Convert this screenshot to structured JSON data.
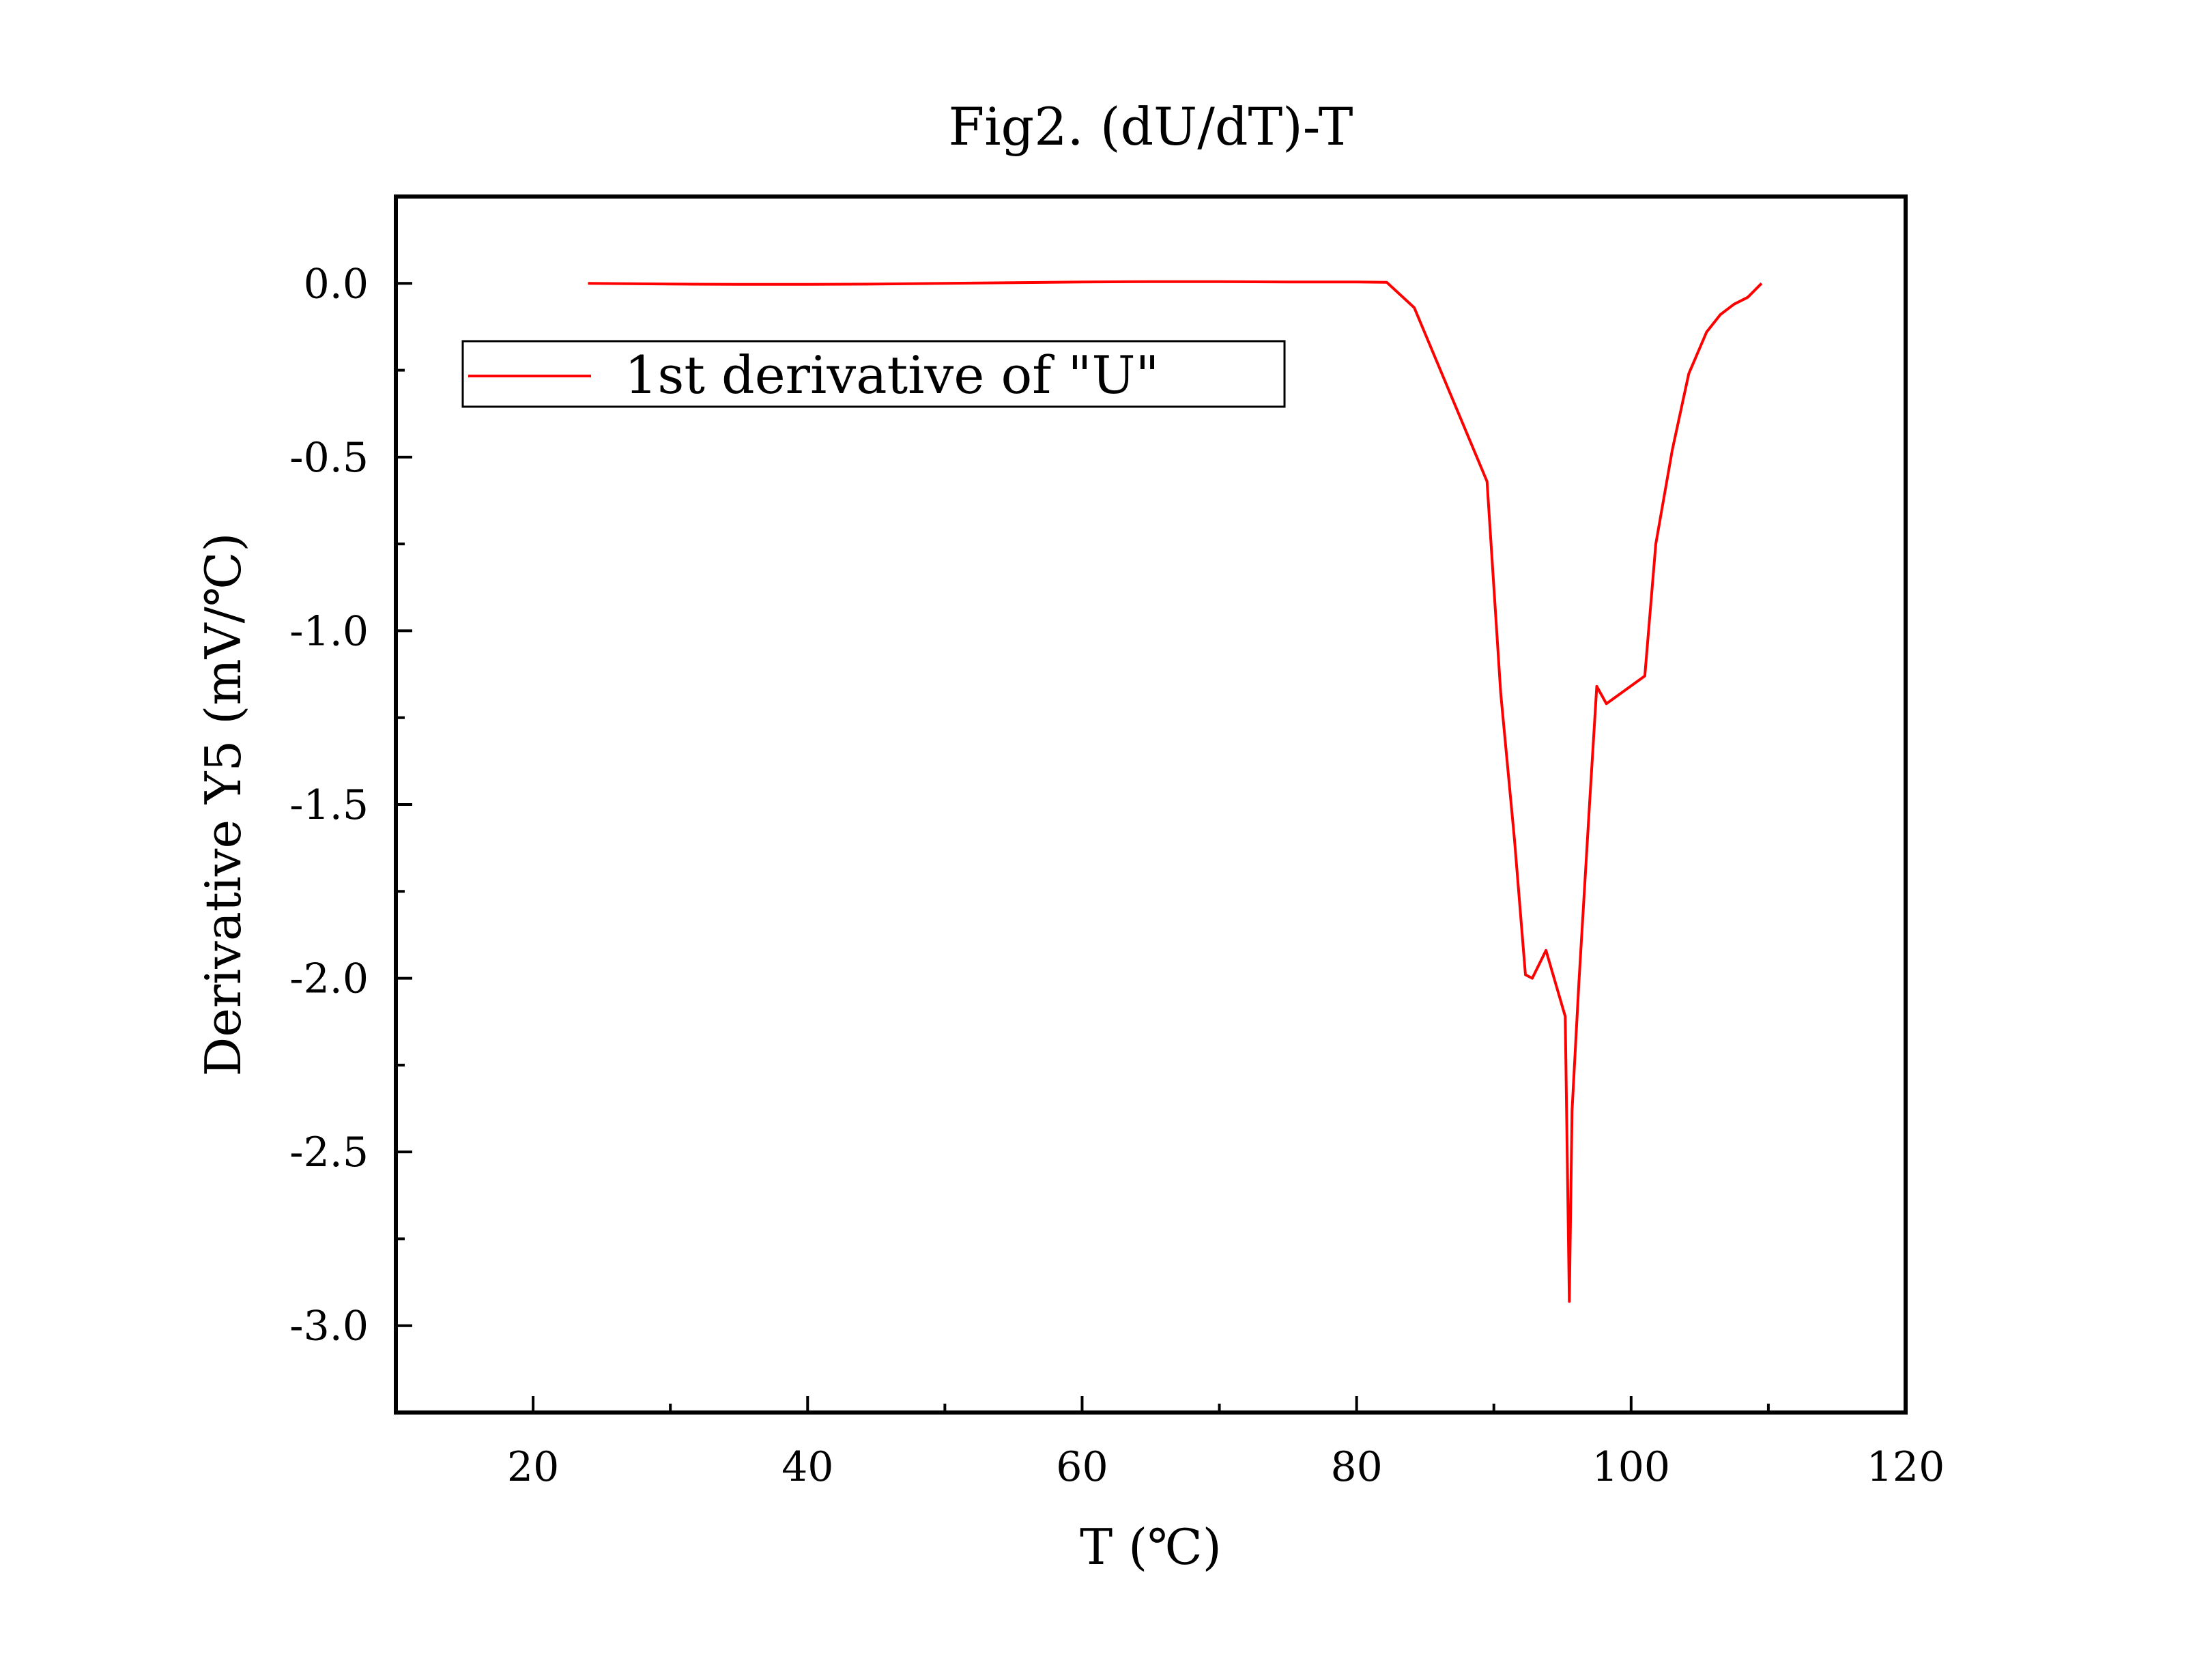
{
  "chart_data": {
    "type": "line",
    "title": "Fig2. (dU/dT)-T",
    "xlabel": "T (℃)",
    "ylabel": "Derivative Y5 (mV/℃)",
    "xlim": [
      10,
      120
    ],
    "ylim": [
      -3.25,
      0.25
    ],
    "xticks": [
      20,
      40,
      60,
      80,
      100,
      120
    ],
    "xtick_labels": [
      "20",
      "40",
      "60",
      "80",
      "100",
      "120"
    ],
    "xminor": [
      30,
      50,
      70,
      90,
      110
    ],
    "yticks": [
      0.0,
      -0.5,
      -1.0,
      -1.5,
      -2.0,
      -2.5,
      -3.0
    ],
    "ytick_labels": [
      "0.0",
      "-0.5",
      "-1.0",
      "-1.5",
      "-2.0",
      "-2.5",
      "-3.0"
    ],
    "yminor": [
      -0.25,
      -0.75,
      -1.25,
      -1.75,
      -2.25,
      -2.75
    ],
    "grid": false,
    "legend_position": "top-left",
    "series": [
      {
        "name": "1st derivative of \"U\"",
        "color": "#ff0000",
        "x": [
          24,
          30,
          35,
          40,
          45,
          50,
          55,
          60,
          65,
          70,
          75,
          80,
          82.2,
          84.2,
          89.5,
          90.5,
          91.5,
          92.3,
          92.8,
          93.8,
          95.2,
          95.5,
          95.7,
          96.2,
          97.0,
          97.5,
          98.2,
          101.0,
          101.8,
          103.0,
          104.2,
          105.5,
          106.5,
          107.5,
          108.5,
          109.0,
          109.5
        ],
        "y": [
          0.0,
          -0.002,
          -0.003,
          -0.003,
          -0.002,
          0.0,
          0.002,
          0.004,
          0.005,
          0.005,
          0.004,
          0.004,
          0.003,
          -0.07,
          -0.57,
          -1.18,
          -1.6,
          -1.99,
          -2.0,
          -1.92,
          -2.11,
          -2.93,
          -2.38,
          -2.01,
          -1.48,
          -1.16,
          -1.21,
          -1.13,
          -0.75,
          -0.48,
          -0.26,
          -0.14,
          -0.09,
          -0.06,
          -0.04,
          -0.02,
          0.0
        ]
      }
    ]
  }
}
